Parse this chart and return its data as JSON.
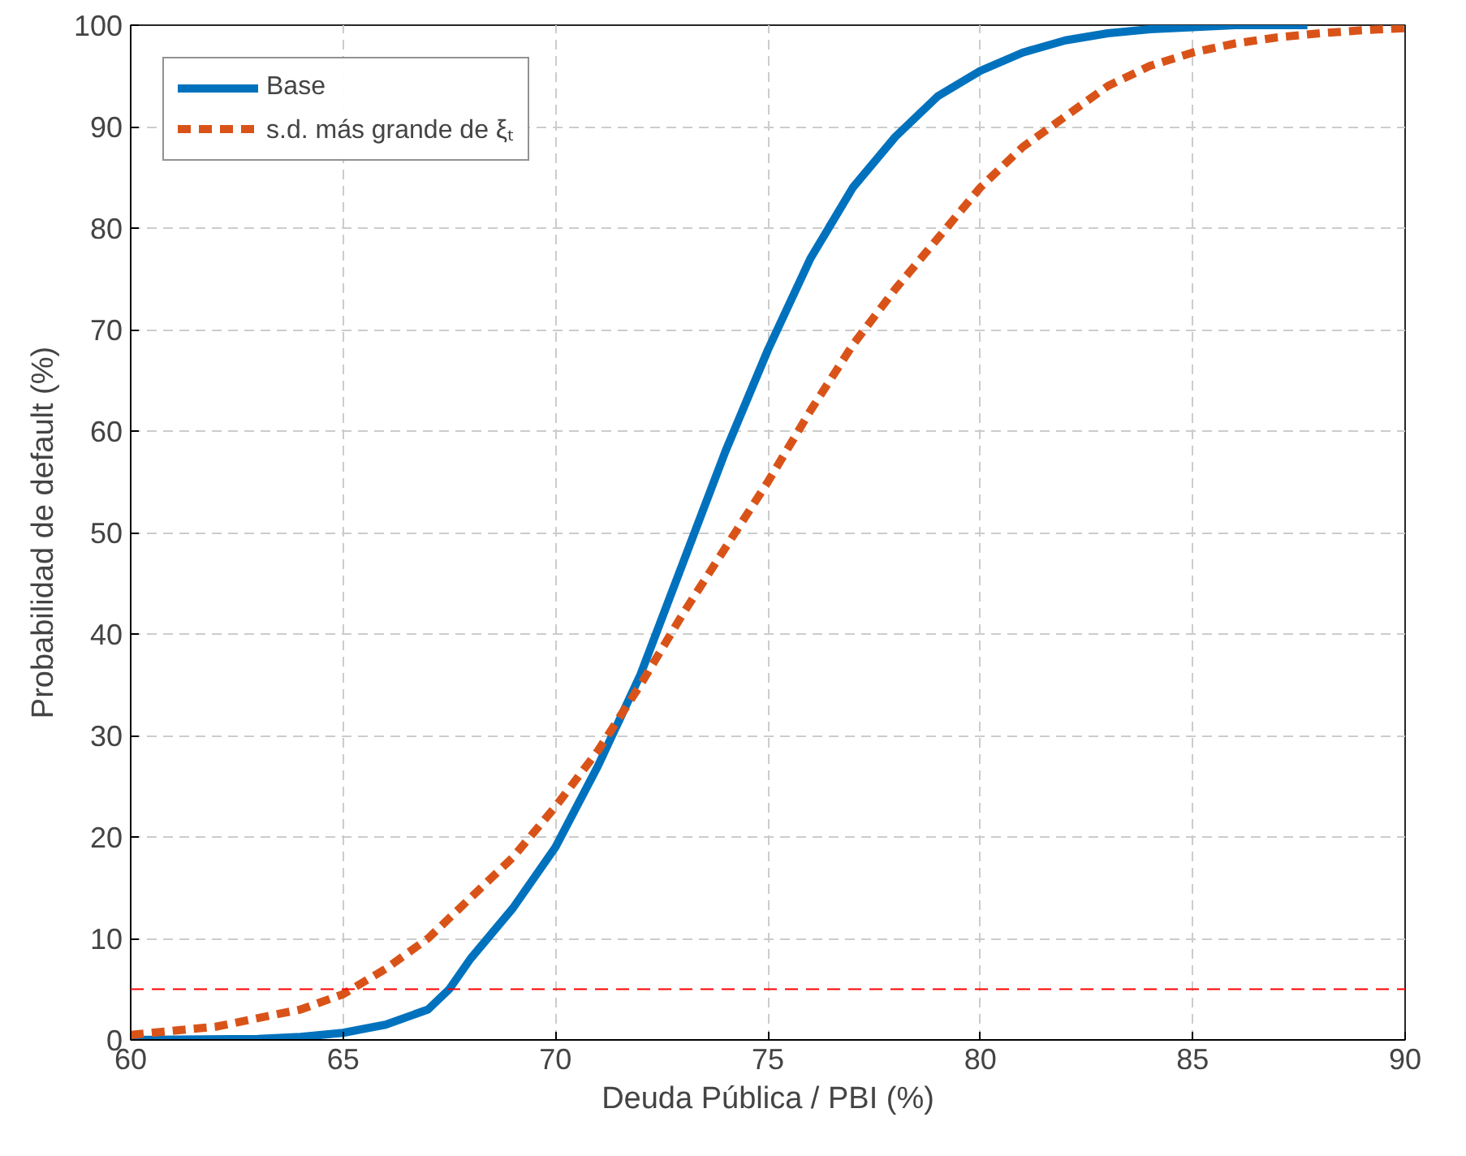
{
  "chart_data": {
    "type": "line",
    "xlabel": "Deuda Pública / PBI (%)",
    "ylabel": "Probabilidad de default (%)",
    "xlim": [
      60,
      90
    ],
    "ylim": [
      0,
      100
    ],
    "xticks": [
      60,
      65,
      70,
      75,
      80,
      85,
      90
    ],
    "yticks": [
      0,
      10,
      20,
      30,
      40,
      50,
      60,
      70,
      80,
      90,
      100
    ],
    "grid": true,
    "legend": "top left",
    "marker": "none",
    "series": [
      {
        "name": "Base",
        "color": "#0072bd",
        "line_style": "solid",
        "x": [
          60,
          63,
          64,
          65,
          66,
          67,
          67.5,
          68,
          69,
          70,
          71,
          72,
          73,
          74,
          75,
          76,
          77,
          78,
          79,
          80,
          81,
          82,
          83,
          84,
          85,
          86,
          87.7
        ],
        "values": [
          0,
          0.1,
          0.3,
          0.7,
          1.5,
          3,
          5,
          8,
          13,
          19,
          27,
          36,
          47,
          58,
          68,
          77,
          84,
          89,
          93,
          95.5,
          97.3,
          98.5,
          99.2,
          99.6,
          99.8,
          100,
          100
        ]
      },
      {
        "name": "s.d. más grande de ξₜ",
        "color": "#d95319",
        "line_style": "dashed",
        "x": [
          60,
          62,
          64,
          65,
          66,
          67,
          68,
          69,
          70,
          71,
          72,
          73,
          74,
          75,
          76,
          77,
          78,
          79,
          80,
          81,
          82,
          83,
          84,
          85,
          86,
          87,
          88,
          89,
          90
        ],
        "values": [
          0.5,
          1.3,
          3,
          4.5,
          7,
          10,
          14,
          18,
          23,
          28.5,
          35,
          42,
          48.5,
          55,
          62,
          68.5,
          74,
          79,
          84,
          88,
          91,
          94,
          96,
          97.3,
          98.2,
          98.8,
          99.2,
          99.5,
          99.7
        ]
      }
    ],
    "ref_lines": [
      {
        "axis": "y",
        "value": 5,
        "color": "#ff0000",
        "line_style": "dashed"
      }
    ]
  }
}
